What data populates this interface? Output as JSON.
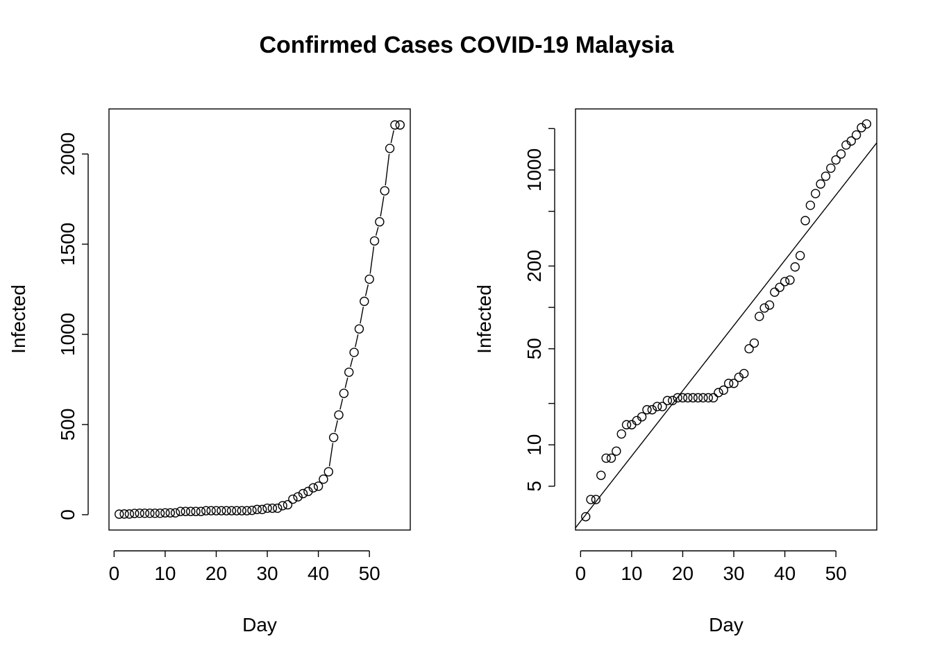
{
  "title": "Confirmed Cases COVID-19 Malaysia",
  "chart_data": [
    {
      "type": "scatter",
      "subtype": "both",
      "xlabel": "Day",
      "ylabel": "Infected",
      "x": [
        1,
        2,
        3,
        4,
        5,
        6,
        7,
        8,
        9,
        10,
        11,
        12,
        13,
        14,
        15,
        16,
        17,
        18,
        19,
        20,
        21,
        22,
        23,
        24,
        25,
        26,
        27,
        28,
        29,
        30,
        31,
        32,
        33,
        34,
        35,
        36,
        37,
        38,
        39,
        40,
        41,
        42,
        43,
        44,
        45,
        46,
        47,
        48,
        49,
        50,
        51,
        52,
        53,
        54,
        55,
        56
      ],
      "y": [
        3,
        4,
        4,
        7,
        8,
        8,
        8,
        8,
        8,
        10,
        10,
        10,
        18,
        18,
        18,
        18,
        18,
        22,
        22,
        22,
        22,
        22,
        22,
        22,
        22,
        22,
        24,
        29,
        29,
        36,
        36,
        36,
        50,
        55,
        86,
        99,
        117,
        129,
        149,
        158,
        197,
        238,
        428,
        553,
        673,
        790,
        900,
        1030,
        1183,
        1306,
        1518,
        1624,
        1796,
        2031,
        2161,
        2161
      ],
      "xticks": [
        0,
        10,
        20,
        30,
        40,
        50
      ],
      "yticks": [
        0,
        500,
        1000,
        1500,
        2000
      ],
      "xlim": [
        -1,
        58
      ],
      "ylim": [
        -85,
        2250
      ],
      "log_y": false,
      "grid": false
    },
    {
      "type": "scatter",
      "xlabel": "Day",
      "ylabel": "Infected",
      "x": [
        1,
        2,
        3,
        4,
        5,
        6,
        7,
        8,
        9,
        10,
        11,
        12,
        13,
        14,
        15,
        16,
        17,
        18,
        19,
        20,
        21,
        22,
        23,
        24,
        25,
        26,
        27,
        28,
        29,
        30,
        31,
        32,
        33,
        34,
        35,
        36,
        37,
        38,
        39,
        40,
        41,
        42,
        43,
        44,
        45,
        46,
        47,
        48,
        49,
        50,
        51,
        52,
        53,
        54,
        55,
        56
      ],
      "y": [
        3,
        4,
        4,
        6,
        8,
        8,
        9,
        12,
        14,
        14,
        15,
        16,
        18,
        18,
        19,
        19,
        21,
        21,
        22,
        22,
        22,
        22,
        22,
        22,
        22,
        22,
        24,
        25,
        28,
        28,
        31,
        33,
        50,
        55,
        86,
        99,
        104,
        129,
        140,
        154,
        158,
        197,
        238,
        428,
        553,
        673,
        790,
        900,
        1030,
        1183,
        1306,
        1518,
        1624,
        1796,
        2031,
        2161
      ],
      "yticks": [
        5,
        10,
        50,
        200,
        1000
      ],
      "yminor": [
        20,
        100,
        500,
        2000
      ],
      "xticks": [
        0,
        10,
        20,
        30,
        40,
        50
      ],
      "xlim": [
        -1,
        58
      ],
      "ylim": [
        2.4,
        2780
      ],
      "log_y": true,
      "fit_line": {
        "x": [
          -1,
          58
        ],
        "y": [
          2.49,
          1576
        ]
      },
      "grid": false
    }
  ]
}
